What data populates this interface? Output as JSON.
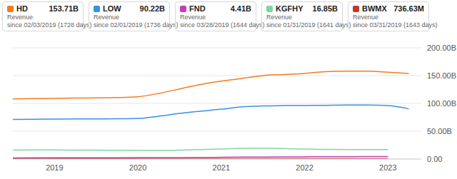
{
  "chart_data": {
    "type": "line",
    "x": [
      2018.5,
      2018.75,
      2019,
      2019.25,
      2019.5,
      2019.75,
      2020,
      2020.25,
      2020.5,
      2020.75,
      2021,
      2021.25,
      2021.5,
      2021.75,
      2022,
      2022.25,
      2022.5,
      2022.75,
      2023,
      2023.25
    ],
    "xlim": [
      2018.5,
      2023.4
    ],
    "xticks": [
      2019,
      2020,
      2021,
      2022,
      2023
    ],
    "ylim": [
      0,
      200
    ],
    "yticks": [
      {
        "value": 0,
        "label": "0.00"
      },
      {
        "value": 50,
        "label": "50.00B"
      },
      {
        "value": 100,
        "label": "100.00B"
      },
      {
        "value": 150,
        "label": "150.00B"
      },
      {
        "value": 200,
        "label": "200.00B"
      }
    ],
    "grid": true,
    "series": [
      {
        "name": "HD",
        "color": "#f47b20",
        "latest_label": "153.71B",
        "metric": "Revenue",
        "since": "since 02/03/2019",
        "days": "(1728 days)",
        "values": [
          108,
          108.5,
          109,
          109.5,
          110,
          110.5,
          112,
          118,
          126,
          134,
          140,
          145,
          150,
          152,
          154,
          157,
          158,
          158,
          156,
          153.71
        ]
      },
      {
        "name": "LOW",
        "color": "#3b8fe8",
        "latest_label": "90.22B",
        "metric": "Revenue",
        "since": "since 02/01/2019",
        "days": "(1736 days)",
        "values": [
          71,
          71.5,
          71.8,
          72,
          72.1,
          72.3,
          73,
          77,
          82,
          86,
          89.6,
          94,
          95.5,
          96,
          96.3,
          96.5,
          97,
          97.1,
          96,
          90.22
        ]
      },
      {
        "name": "FND",
        "color": "#c03cc0",
        "latest_label": "4.41B",
        "metric": "Revenue",
        "since": "since 03/28/2019",
        "days": "(1644 days)",
        "values": [
          2.0,
          2.1,
          2.2,
          2.3,
          2.35,
          2.4,
          2.45,
          2.5,
          2.6,
          2.8,
          3.1,
          3.4,
          3.6,
          3.8,
          4.0,
          4.2,
          4.3,
          4.38,
          4.41,
          null
        ]
      },
      {
        "name": "KGFHY",
        "color": "#7fd6a4",
        "latest_label": "16.85B",
        "metric": "Revenue",
        "since": "since 01/31/2019",
        "days": "(1641 days)",
        "values": [
          16,
          16.2,
          16.3,
          16.1,
          15.9,
          15.8,
          15.6,
          15.3,
          16,
          17,
          18,
          19.2,
          19.5,
          18.8,
          17.8,
          17.3,
          16.9,
          16.85,
          16.85,
          null
        ]
      },
      {
        "name": "BWMX",
        "color": "#c0392b",
        "latest_label": "736.63M",
        "metric": "Revenue",
        "since": "since 03/31/2019",
        "days": "(1643 days)",
        "values": [
          0.45,
          0.47,
          0.49,
          0.5,
          0.51,
          0.52,
          0.53,
          0.54,
          0.56,
          0.58,
          0.6,
          0.62,
          0.64,
          0.66,
          0.68,
          0.7,
          0.71,
          0.72,
          0.7366,
          null
        ]
      }
    ]
  }
}
